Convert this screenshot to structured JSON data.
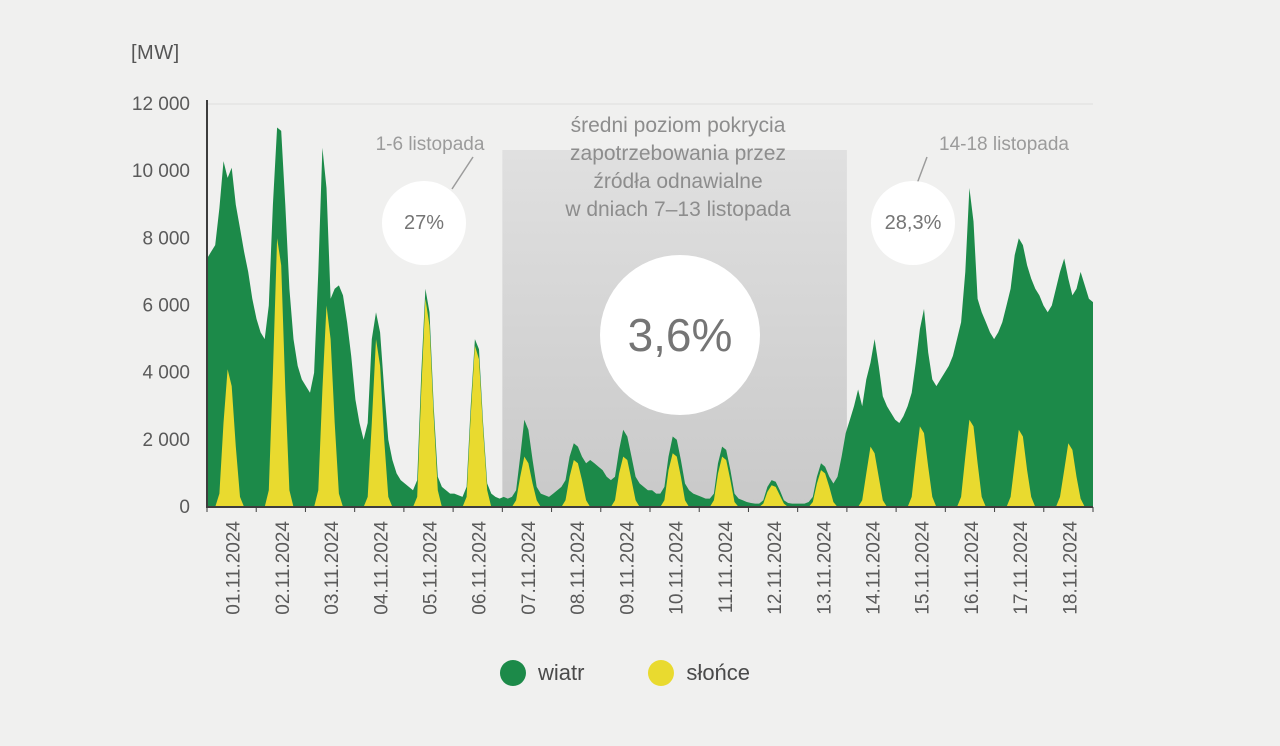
{
  "chart_data": {
    "type": "area",
    "stacked": true,
    "unit": "MW",
    "ylabel": "[MW]",
    "ylim": [
      0,
      12000
    ],
    "yticks": [
      0,
      2000,
      4000,
      6000,
      8000,
      10000,
      12000
    ],
    "ytick_labels": [
      "0",
      "2 000",
      "4 000",
      "6 000",
      "8 000",
      "10 000",
      "12 000"
    ],
    "categories": [
      "01.11.2024",
      "02.11.2024",
      "03.11.2024",
      "04.11.2024",
      "05.11.2024",
      "06.11.2024",
      "07.11.2024",
      "08.11.2024",
      "09.11.2024",
      "10.11.2024",
      "11.11.2024",
      "12.11.2024",
      "13.11.2024",
      "14.11.2024",
      "15.11.2024",
      "16.11.2024",
      "17.11.2024",
      "18.11.2024"
    ],
    "samples_per_day": 12,
    "series": [
      {
        "name": "wiatr",
        "color": "#1c8a49",
        "values": [
          7400,
          7600,
          7800,
          8500,
          7800,
          5700,
          6500,
          7200,
          8000,
          7600,
          7000,
          6200,
          5600,
          5200,
          5000,
          5500,
          5000,
          3300,
          4000,
          5500,
          6000,
          5000,
          4200,
          3800,
          3600,
          3400,
          4000,
          6500,
          7200,
          3500,
          1200,
          4000,
          6200,
          6300,
          5500,
          4500,
          3200,
          2500,
          2000,
          2200,
          2500,
          800,
          1000,
          1500,
          1700,
          1400,
          1000,
          800,
          700,
          600,
          500,
          500,
          500,
          300,
          400,
          300,
          400,
          600,
          500,
          400,
          400,
          350,
          300,
          300,
          300,
          200,
          300,
          200,
          200,
          400,
          300,
          250,
          300,
          250,
          300,
          300,
          600,
          1100,
          1000,
          700,
          400,
          400,
          350,
          300,
          400,
          500,
          600,
          600,
          600,
          500,
          500,
          700,
          1100,
          1400,
          1300,
          1200,
          1100,
          900,
          800,
          700,
          700,
          800,
          700,
          700,
          700,
          700,
          600,
          500,
          500,
          400,
          400,
          400,
          400,
          500,
          500,
          500,
          500,
          500,
          400,
          350,
          300,
          250,
          250,
          200,
          300,
          300,
          300,
          300,
          250,
          250,
          200,
          150,
          120,
          100,
          100,
          100,
          150,
          150,
          150,
          150,
          100,
          120,
          100,
          100,
          100,
          100,
          150,
          150,
          200,
          200,
          200,
          300,
          550,
          900,
          1500,
          2200,
          2600,
          3000,
          3500,
          2800,
          2800,
          2500,
          3400,
          3300,
          3100,
          3000,
          2800,
          2600,
          2500,
          2700,
          3000,
          3100,
          2900,
          2900,
          3700,
          3400,
          3500,
          3600,
          3800,
          4000,
          4200,
          4500,
          5000,
          5200,
          5500,
          6900,
          6100,
          4900,
          5500,
          5500,
          5200,
          5000,
          5200,
          5500,
          6000,
          6200,
          6200,
          5700,
          5700,
          6100,
          6500,
          6500,
          6300,
          6000,
          5800,
          6000,
          6500,
          6700,
          6300,
          4900,
          4600,
          5600,
          6750,
          6600,
          6200,
          6100
        ]
      },
      {
        "name": "słońce",
        "color": "#e9da2f",
        "values": [
          0,
          0,
          0,
          400,
          2500,
          4100,
          3600,
          1800,
          300,
          0,
          0,
          0,
          0,
          0,
          0,
          500,
          4000,
          8000,
          7200,
          3500,
          500,
          0,
          0,
          0,
          0,
          0,
          0,
          500,
          3500,
          6000,
          5000,
          2500,
          400,
          0,
          0,
          0,
          0,
          0,
          0,
          300,
          2500,
          5000,
          4200,
          2000,
          300,
          0,
          0,
          0,
          0,
          0,
          0,
          300,
          3500,
          6200,
          5400,
          2700,
          500,
          0,
          0,
          0,
          0,
          0,
          0,
          300,
          2700,
          4800,
          4400,
          2300,
          500,
          0,
          0,
          0,
          0,
          0,
          0,
          200,
          900,
          1500,
          1300,
          700,
          200,
          0,
          0,
          0,
          0,
          0,
          0,
          200,
          900,
          1400,
          1300,
          800,
          200,
          0,
          0,
          0,
          0,
          0,
          0,
          200,
          1000,
          1500,
          1400,
          800,
          200,
          0,
          0,
          0,
          0,
          0,
          0,
          200,
          1100,
          1600,
          1500,
          900,
          200,
          0,
          0,
          0,
          0,
          0,
          0,
          200,
          1000,
          1500,
          1400,
          800,
          150,
          0,
          0,
          0,
          0,
          0,
          0,
          100,
          450,
          650,
          600,
          350,
          100,
          0,
          0,
          0,
          0,
          0,
          0,
          150,
          700,
          1100,
          1000,
          600,
          150,
          0,
          0,
          0,
          0,
          0,
          0,
          200,
          1000,
          1800,
          1600,
          900,
          200,
          0,
          0,
          0,
          0,
          0,
          0,
          300,
          1400,
          2400,
          2200,
          1200,
          300,
          0,
          0,
          0,
          0,
          0,
          0,
          300,
          1500,
          2600,
          2400,
          1300,
          300,
          0,
          0,
          0,
          0,
          0,
          0,
          300,
          1300,
          2300,
          2100,
          1100,
          300,
          0,
          0,
          0,
          0,
          0,
          0,
          300,
          1100,
          1900,
          1700,
          900,
          250,
          0,
          0,
          0
        ]
      }
    ],
    "highlight_band": {
      "from_day": 7,
      "to_day": 13,
      "color_top": "#e0e0e0",
      "color_bottom": "#c9c9c9"
    },
    "annotations": {
      "left": {
        "label": "1-6 listopada",
        "value": "27%"
      },
      "center": {
        "lines": [
          "średni poziom pokrycia",
          "zapotrzebowania przez",
          "źródła odnawialne",
          "w dniach 7–13 listopada"
        ],
        "value": "3,6%"
      },
      "right": {
        "label": "14-18 listopada",
        "value": "28,3%"
      }
    },
    "legend_position": "bottom-center",
    "grid": false
  }
}
